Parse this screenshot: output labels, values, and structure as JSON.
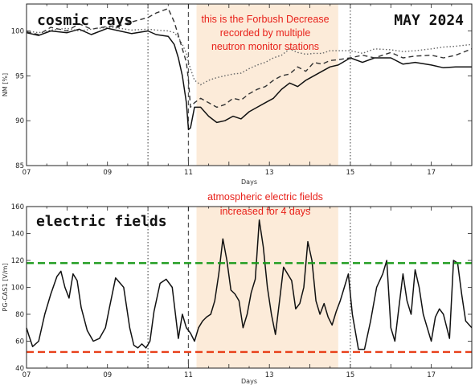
{
  "chart_data": [
    {
      "type": "line",
      "panel_label": "cosmic rays",
      "date_label": "MAY 2024",
      "xlabel": "Days",
      "ylabel": "NM [%]",
      "xlim": [
        7,
        18
      ],
      "ylim": [
        85,
        103
      ],
      "x_ticks": [
        7,
        9,
        11,
        13,
        15,
        17
      ],
      "x_tick_labels": [
        "07",
        "09",
        "11",
        "13",
        "15",
        "17"
      ],
      "y_ticks": [
        85,
        90,
        95,
        100
      ],
      "y_tick_labels": [
        "85",
        "90",
        "95",
        "100"
      ],
      "highlight": {
        "from": 11.2,
        "to": 14.7,
        "color": "#fcebd9"
      },
      "vlines": [
        {
          "x": 10,
          "style": "dotted"
        },
        {
          "x": 11,
          "style": "dashed"
        },
        {
          "x": 15,
          "style": "dotted"
        }
      ],
      "annotation": {
        "lines": [
          "this is the Forbush Decrease",
          "recorded by multiple",
          "neutron monitor stations"
        ],
        "color": "#e8211a"
      },
      "series": [
        {
          "style": "solid",
          "color": "#111111",
          "x": [
            7,
            7.3,
            7.6,
            8,
            8.3,
            8.6,
            9,
            9.3,
            9.6,
            10,
            10.2,
            10.5,
            10.65,
            10.75,
            10.85,
            10.95,
            11,
            11.05,
            11.15,
            11.3,
            11.5,
            11.7,
            11.9,
            12.1,
            12.3,
            12.5,
            12.7,
            12.9,
            13.1,
            13.3,
            13.5,
            13.7,
            13.9,
            14.1,
            14.3,
            14.5,
            14.7,
            15,
            15.3,
            15.6,
            16,
            16.3,
            16.6,
            17,
            17.3,
            17.6,
            18
          ],
          "y": [
            99.8,
            99.5,
            100,
            99.8,
            100.2,
            99.6,
            100.3,
            100,
            99.7,
            100,
            99.6,
            99.4,
            98.5,
            97,
            95,
            92,
            89,
            89.2,
            91.5,
            91.5,
            90.5,
            89.8,
            90,
            90.5,
            90.2,
            91,
            91.5,
            92,
            92.5,
            93.5,
            94.2,
            93.8,
            94.5,
            95,
            95.5,
            96,
            96.2,
            97,
            96.5,
            97,
            97,
            96.3,
            96.5,
            96.2,
            95.9,
            96,
            96
          ]
        },
        {
          "style": "dashed",
          "color": "#333333",
          "x": [
            7,
            7.3,
            7.6,
            8,
            8.3,
            8.6,
            9,
            9.3,
            9.6,
            10,
            10.2,
            10.5,
            10.65,
            10.75,
            10.85,
            10.95,
            11,
            11.05,
            11.15,
            11.3,
            11.5,
            11.7,
            11.9,
            12.1,
            12.3,
            12.5,
            12.7,
            12.9,
            13.1,
            13.3,
            13.5,
            13.7,
            13.9,
            14.1,
            14.3,
            14.5,
            14.7,
            15,
            15.3,
            15.6,
            16,
            16.3,
            16.6,
            17,
            17.3,
            17.6,
            18
          ],
          "y": [
            99.9,
            99.6,
            100.4,
            100,
            100.8,
            100.2,
            100.5,
            100.6,
            101,
            101.5,
            102,
            102.5,
            101,
            99.5,
            98,
            96.5,
            94.5,
            91.5,
            92,
            92.5,
            92,
            91.5,
            91.8,
            92.5,
            92.3,
            93,
            93.5,
            93.8,
            94.5,
            95,
            95.2,
            96,
            95.5,
            96.5,
            96.3,
            96.7,
            96.8,
            97,
            97.3,
            97,
            97.6,
            97,
            97.2,
            97.3,
            97,
            97.3,
            98
          ]
        },
        {
          "style": "dotted",
          "color": "#666666",
          "x": [
            7,
            7.3,
            7.6,
            8,
            8.3,
            8.6,
            9,
            9.3,
            9.6,
            10,
            10.2,
            10.5,
            10.65,
            10.75,
            10.85,
            10.95,
            11,
            11.05,
            11.15,
            11.3,
            11.5,
            11.7,
            11.9,
            12.1,
            12.3,
            12.5,
            12.7,
            12.9,
            13.1,
            13.3,
            13.5,
            13.7,
            13.9,
            14.1,
            14.3,
            14.5,
            14.7,
            15,
            15.3,
            15.6,
            16,
            16.3,
            16.6,
            17,
            17.3,
            17.6,
            18
          ],
          "y": [
            100,
            99.8,
            100.1,
            100.3,
            100,
            100.2,
            100.4,
            100.3,
            100.1,
            100.2,
            100.1,
            100,
            99.8,
            99.3,
            98.5,
            97.5,
            96.5,
            95.8,
            94.5,
            94,
            94.5,
            94.8,
            95,
            95.2,
            95.3,
            95.8,
            96.2,
            96.5,
            97,
            97.3,
            98,
            97.6,
            97.4,
            97.5,
            97.5,
            97.8,
            97.8,
            97.8,
            97.5,
            98,
            97.9,
            97.7,
            97.8,
            98,
            98.2,
            98.3,
            98.5
          ]
        }
      ]
    },
    {
      "type": "line",
      "panel_label": "electric fields",
      "xlabel": "Days",
      "ylabel": "PG-CAS1 [V/m]",
      "xlim": [
        7,
        18
      ],
      "ylim": [
        40,
        160
      ],
      "x_ticks": [
        7,
        9,
        11,
        13,
        15,
        17
      ],
      "x_tick_labels": [
        "07",
        "09",
        "11",
        "13",
        "15",
        "17"
      ],
      "y_ticks": [
        40,
        60,
        80,
        100,
        120,
        140,
        160
      ],
      "y_tick_labels": [
        "40",
        "60",
        "80",
        "100",
        "120",
        "140",
        "160"
      ],
      "highlight": {
        "from": 11.2,
        "to": 14.7,
        "color": "#fcebd9"
      },
      "vlines": [
        {
          "x": 10,
          "style": "dotted"
        },
        {
          "x": 11,
          "style": "dashed"
        },
        {
          "x": 15,
          "style": "dotted"
        }
      ],
      "hlines": [
        {
          "y": 118,
          "color": "#1a9a1a",
          "style": "dashed"
        },
        {
          "y": 52,
          "color": "#e8401a",
          "style": "dashed"
        }
      ],
      "annotation": {
        "lines": [
          "atmospheric electric fields",
          "increased for 4 days"
        ],
        "color": "#e8211a"
      },
      "series": [
        {
          "style": "solid",
          "color": "#111111",
          "x": [
            7,
            7.05,
            7.15,
            7.3,
            7.45,
            7.6,
            7.75,
            7.85,
            7.95,
            8.05,
            8.15,
            8.25,
            8.35,
            8.5,
            8.65,
            8.8,
            8.95,
            9.05,
            9.2,
            9.4,
            9.55,
            9.65,
            9.75,
            9.85,
            9.95,
            10.05,
            10.15,
            10.3,
            10.45,
            10.6,
            10.75,
            10.85,
            10.95,
            11.05,
            11.15,
            11.25,
            11.35,
            11.45,
            11.55,
            11.65,
            11.75,
            11.85,
            11.95,
            12.05,
            12.15,
            12.25,
            12.35,
            12.45,
            12.55,
            12.65,
            12.75,
            12.85,
            12.95,
            13.05,
            13.15,
            13.25,
            13.35,
            13.45,
            13.55,
            13.65,
            13.75,
            13.85,
            13.95,
            14.05,
            14.15,
            14.25,
            14.35,
            14.45,
            14.55,
            14.65,
            14.75,
            14.85,
            14.95,
            15.05,
            15.2,
            15.35,
            15.5,
            15.65,
            15.8,
            15.9,
            16.0,
            16.1,
            16.2,
            16.3,
            16.4,
            16.5,
            16.6,
            16.7,
            16.8,
            16.9,
            17.0,
            17.1,
            17.2,
            17.3,
            17.45,
            17.55,
            17.65,
            17.75,
            17.85,
            18
          ],
          "y": [
            70,
            65,
            56,
            60,
            80,
            95,
            108,
            112,
            100,
            92,
            110,
            105,
            85,
            68,
            60,
            62,
            70,
            85,
            107,
            100,
            70,
            57,
            55,
            58,
            55,
            60,
            82,
            103,
            106,
            100,
            62,
            80,
            70,
            66,
            60,
            70,
            75,
            78,
            80,
            90,
            110,
            136,
            120,
            98,
            95,
            90,
            70,
            80,
            96,
            106,
            150,
            130,
            100,
            80,
            65,
            90,
            115,
            110,
            105,
            84,
            88,
            100,
            134,
            120,
            90,
            80,
            88,
            78,
            72,
            82,
            90,
            100,
            110,
            80,
            54,
            54,
            75,
            100,
            110,
            120,
            70,
            60,
            85,
            110,
            90,
            80,
            113,
            100,
            80,
            70,
            60,
            78,
            84,
            80,
            62,
            120,
            118,
            95,
            75,
            70
          ]
        }
      ]
    }
  ]
}
